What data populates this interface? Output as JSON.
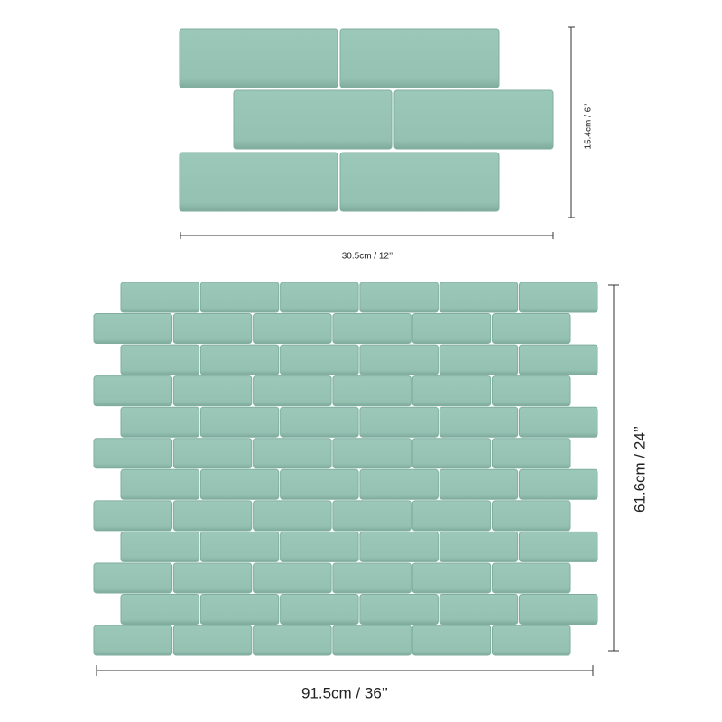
{
  "small_panel": {
    "height_label": "15.4cm / 6’’",
    "width_label": "30.5cm / 12’’"
  },
  "large_panel": {
    "height_label": "61.6cm / 24’’",
    "width_label": "91.5cm / 36’’"
  }
}
